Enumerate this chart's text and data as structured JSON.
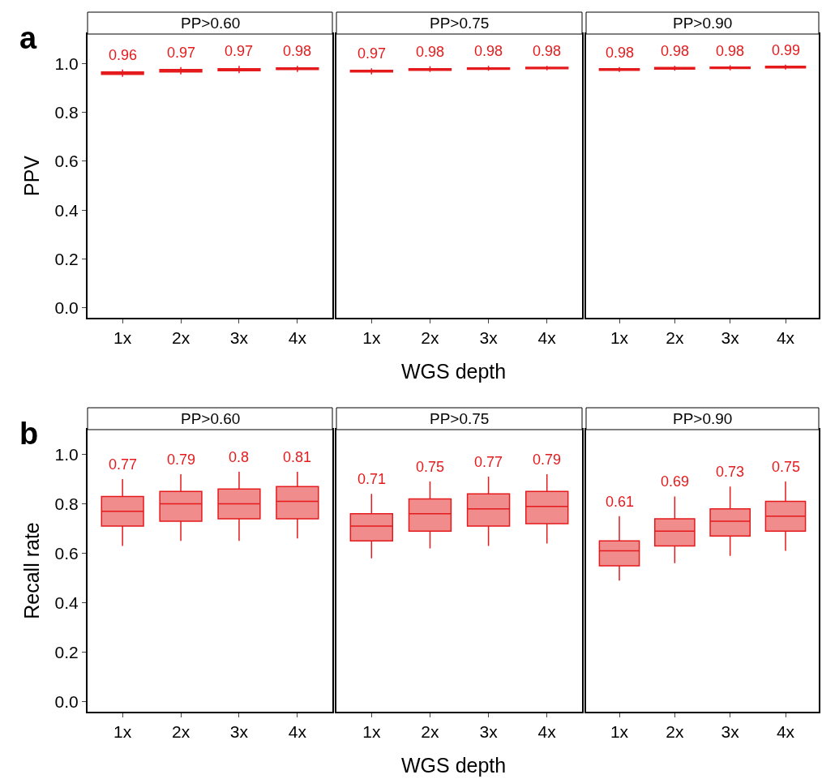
{
  "chart_data": [
    {
      "type": "box",
      "title": "PP>0.60",
      "annotations": [
        "a"
      ],
      "ylabel": "PPV",
      "categories": [
        "1x",
        "2x",
        "3x",
        "4x"
      ],
      "ylim": [
        -0.04,
        1.12
      ],
      "yticks": [
        {
          "value": 0,
          "label": "0.0"
        },
        {
          "value": 0.2,
          "label": "0.2"
        },
        {
          "value": 0.4,
          "label": "0.4"
        },
        {
          "value": 0.6,
          "label": "0.6"
        },
        {
          "value": 0.8,
          "label": "0.8"
        },
        {
          "value": 1,
          "label": "1.0"
        }
      ],
      "series": [
        {
          "color": "#e41a1c",
          "boxes": [
            {
              "low": 0.945,
              "q1": 0.955,
              "median": 0.96,
              "q3": 0.965,
              "high": 0.975
            },
            {
              "low": 0.955,
              "q1": 0.965,
              "median": 0.97,
              "q3": 0.975,
              "high": 0.985
            },
            {
              "low": 0.96,
              "q1": 0.97,
              "median": 0.974,
              "q3": 0.978,
              "high": 0.99
            },
            {
              "low": 0.965,
              "q1": 0.975,
              "median": 0.978,
              "q3": 0.982,
              "high": 0.99
            }
          ],
          "value_labels": [
            "0.96",
            "0.97",
            "0.97",
            "0.98"
          ]
        }
      ]
    },
    {
      "type": "box",
      "title": "PP>0.75",
      "xlabel": "WGS depth",
      "tick_labels": "x",
      "categories": [
        "1x",
        "2x",
        "3x",
        "4x"
      ],
      "ylim": [
        -0.04,
        1.12
      ],
      "series": [
        {
          "color": "#e41a1c",
          "boxes": [
            {
              "low": 0.955,
              "q1": 0.965,
              "median": 0.968,
              "q3": 0.972,
              "high": 0.98
            },
            {
              "low": 0.965,
              "q1": 0.972,
              "median": 0.975,
              "q3": 0.978,
              "high": 0.988
            },
            {
              "low": 0.97,
              "q1": 0.976,
              "median": 0.979,
              "q3": 0.982,
              "high": 0.99
            },
            {
              "low": 0.972,
              "q1": 0.978,
              "median": 0.981,
              "q3": 0.984,
              "high": 0.99
            }
          ],
          "value_labels": [
            "0.97",
            "0.98",
            "0.98",
            "0.98"
          ]
        }
      ]
    },
    {
      "type": "box",
      "title": "PP>0.90",
      "tick_labels": "x",
      "categories": [
        "1x",
        "2x",
        "3x",
        "4x"
      ],
      "ylim": [
        -0.04,
        1.12
      ],
      "series": [
        {
          "color": "#e41a1c",
          "boxes": [
            {
              "low": 0.965,
              "q1": 0.972,
              "median": 0.975,
              "q3": 0.978,
              "high": 0.985
            },
            {
              "low": 0.97,
              "q1": 0.977,
              "median": 0.98,
              "q3": 0.983,
              "high": 0.99
            },
            {
              "low": 0.972,
              "q1": 0.979,
              "median": 0.982,
              "q3": 0.985,
              "high": 0.992
            },
            {
              "low": 0.975,
              "q1": 0.982,
              "median": 0.985,
              "q3": 0.988,
              "high": 0.995
            }
          ],
          "value_labels": [
            "0.98",
            "0.98",
            "0.98",
            "0.99"
          ]
        }
      ]
    },
    {
      "type": "box",
      "title": "PP>0.60",
      "annotations": [
        "b"
      ],
      "ylabel": "Recall rate",
      "categories": [
        "1x",
        "2x",
        "3x",
        "4x"
      ],
      "ylim": [
        -0.04,
        1.1
      ],
      "yticks": [
        {
          "value": 0,
          "label": "0.0"
        },
        {
          "value": 0.2,
          "label": "0.2"
        },
        {
          "value": 0.4,
          "label": "0.4"
        },
        {
          "value": 0.6,
          "label": "0.6"
        },
        {
          "value": 0.8,
          "label": "0.8"
        },
        {
          "value": 1,
          "label": "1.0"
        }
      ],
      "series": [
        {
          "color": "#e41a1c",
          "boxes": [
            {
              "low": 0.63,
              "q1": 0.71,
              "median": 0.77,
              "q3": 0.83,
              "high": 0.9
            },
            {
              "low": 0.65,
              "q1": 0.73,
              "median": 0.8,
              "q3": 0.85,
              "high": 0.92
            },
            {
              "low": 0.65,
              "q1": 0.74,
              "median": 0.8,
              "q3": 0.86,
              "high": 0.93
            },
            {
              "low": 0.66,
              "q1": 0.74,
              "median": 0.81,
              "q3": 0.87,
              "high": 0.93
            }
          ],
          "value_labels": [
            "0.77",
            "0.79",
            "0.8",
            "0.81"
          ]
        }
      ]
    },
    {
      "type": "box",
      "title": "PP>0.75",
      "xlabel": "WGS depth",
      "tick_labels": "x",
      "categories": [
        "1x",
        "2x",
        "3x",
        "4x"
      ],
      "ylim": [
        -0.04,
        1.1
      ],
      "series": [
        {
          "color": "#e41a1c",
          "boxes": [
            {
              "low": 0.58,
              "q1": 0.65,
              "median": 0.71,
              "q3": 0.76,
              "high": 0.84
            },
            {
              "low": 0.62,
              "q1": 0.69,
              "median": 0.76,
              "q3": 0.82,
              "high": 0.89
            },
            {
              "low": 0.63,
              "q1": 0.71,
              "median": 0.78,
              "q3": 0.84,
              "high": 0.91
            },
            {
              "low": 0.64,
              "q1": 0.72,
              "median": 0.79,
              "q3": 0.85,
              "high": 0.92
            }
          ],
          "value_labels": [
            "0.71",
            "0.75",
            "0.77",
            "0.79"
          ]
        }
      ]
    },
    {
      "type": "box",
      "title": "PP>0.90",
      "tick_labels": "x",
      "categories": [
        "1x",
        "2x",
        "3x",
        "4x"
      ],
      "ylim": [
        -0.04,
        1.1
      ],
      "series": [
        {
          "color": "#e41a1c",
          "boxes": [
            {
              "low": 0.49,
              "q1": 0.55,
              "median": 0.61,
              "q3": 0.65,
              "high": 0.75
            },
            {
              "low": 0.56,
              "q1": 0.63,
              "median": 0.69,
              "q3": 0.74,
              "high": 0.83
            },
            {
              "low": 0.59,
              "q1": 0.67,
              "median": 0.73,
              "q3": 0.78,
              "high": 0.87
            },
            {
              "low": 0.61,
              "q1": 0.69,
              "median": 0.75,
              "q3": 0.81,
              "high": 0.89
            }
          ],
          "value_labels": [
            "0.61",
            "0.69",
            "0.73",
            "0.75"
          ]
        }
      ]
    }
  ]
}
